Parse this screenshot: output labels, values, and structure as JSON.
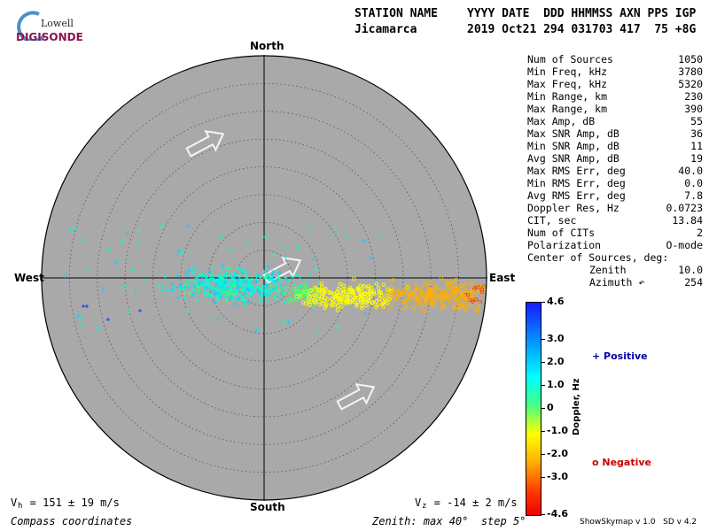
{
  "logo": {
    "lowell": "Lowell",
    "digisonde": "DIGISONDE"
  },
  "header": {
    "station_label": "STATION NAME",
    "date_label": "YYYY DATE  DDD HHMMSS AXN PPS IGP",
    "station_value": "Jicamarca",
    "date_value": "2019 Oct21 294 031703 417  75 +8G"
  },
  "directions": {
    "north": "North",
    "south": "South",
    "west": "West",
    "east": "East"
  },
  "stats": [
    {
      "label": "Num of Sources",
      "value": "1050"
    },
    {
      "label": "Min Freq, kHz",
      "value": "3780"
    },
    {
      "label": "Max Freq, kHz",
      "value": "5320"
    },
    {
      "label": "Min Range, km",
      "value": "230"
    },
    {
      "label": "Max Range, km",
      "value": "390"
    },
    {
      "label": "Max Amp, dB",
      "value": "55"
    },
    {
      "label": "Max SNR Amp, dB",
      "value": "36"
    },
    {
      "label": "Min SNR Amp, dB",
      "value": "11"
    },
    {
      "label": "Avg SNR Amp, dB",
      "value": "19"
    },
    {
      "label": "Max RMS Err, deg",
      "value": "40.0"
    },
    {
      "label": "Min RMS Err, deg",
      "value": "0.0"
    },
    {
      "label": "Avg RMS Err, deg",
      "value": "7.8"
    },
    {
      "label": "Doppler Res, Hz",
      "value": "0.0723"
    },
    {
      "label": "CIT, sec",
      "value": "13.84"
    },
    {
      "label": "Num of CITs",
      "value": "2"
    },
    {
      "label": "Polarization",
      "value": "O-mode"
    },
    {
      "label": "Center of Sources, deg:",
      "value": ""
    },
    {
      "label": "Zenith",
      "value": "10.0"
    },
    {
      "label": "Azimuth ↶",
      "value": "254"
    }
  ],
  "colorbar": {
    "label": "Doppler, Hz",
    "ticks": [
      "4.6",
      "3.0",
      "2.0",
      "1.0",
      "0",
      "-1.0",
      "-2.0",
      "-3.0",
      "-4.6"
    ],
    "tick_values": [
      4.6,
      3.0,
      2.0,
      1.0,
      0,
      -1.0,
      -2.0,
      -3.0,
      -4.6
    ]
  },
  "legend": {
    "positive": "+ Positive",
    "negative": "o Negative",
    "positive_color": "#0000aa",
    "negative_color": "#cc0000"
  },
  "bottom": {
    "vh": "V  = 151 ± 19 m/s",
    "vh_sub": "h",
    "vz": "V  = -14 ± 2 m/s",
    "vz_sub": "z",
    "coords": "Compass coordinates",
    "zenith_info": "Zenith: max 40°  step 5°",
    "version": "ShowSkymap v 1.0   SD v 4.2"
  },
  "skymap": {
    "zenith_max_deg": 40,
    "zenith_step_deg": 5,
    "disk_color": "#a9a9a9",
    "center_zenith_deg": 10.0,
    "center_azimuth_deg": 254
  }
}
